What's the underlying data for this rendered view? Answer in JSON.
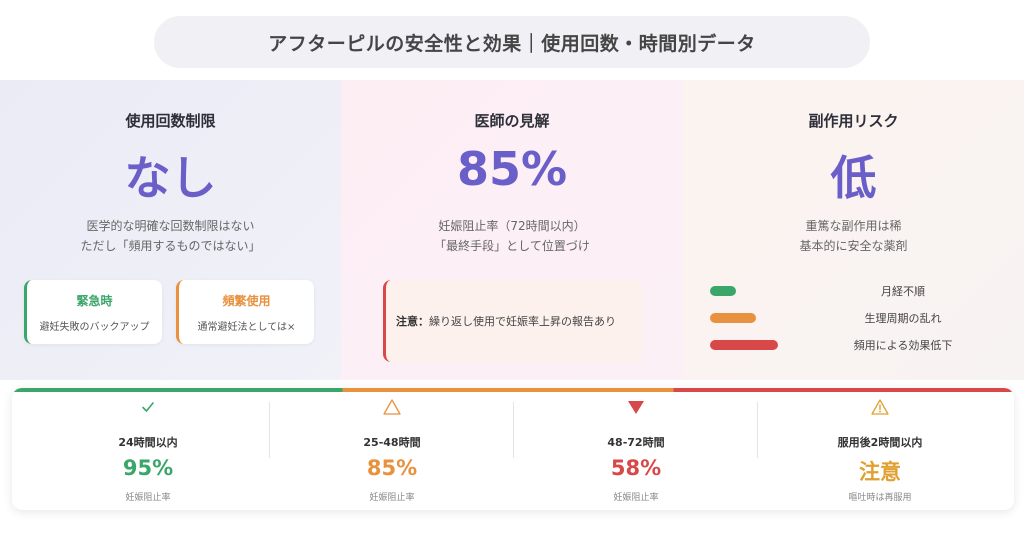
{
  "title": "アフターピルの安全性と効果｜使用回数・時間別データ",
  "panels": {
    "usage_limit": {
      "heading": "使用回数制限",
      "big": "なし",
      "desc1": "医学的な明確な回数制限はない",
      "desc2": "ただし「頻用するものではない」",
      "cards": [
        {
          "title": "緊急時",
          "text": "避妊失敗のバックアップ",
          "color": "#3aa66a"
        },
        {
          "title": "頻繁使用",
          "text": "通常避妊法としては×",
          "color": "#e8913e"
        }
      ]
    },
    "doctor_view": {
      "heading": "医師の見解",
      "big": "85%",
      "desc1": "妊娠阻止率（72時間以内）",
      "desc2": "「最終手段」として位置づけ",
      "note_label": "注意：",
      "note_text": "繰り返し使用で妊娠率上昇の報告あり"
    },
    "side_effect": {
      "heading": "副作用リスク",
      "big": "低",
      "desc1": "重篤な副作用は稀",
      "desc2": "基本的に安全な薬剤",
      "risks": [
        {
          "label": "月経不順",
          "color": "#3aa66a"
        },
        {
          "label": "生理周期の乱れ",
          "color": "#e8913e"
        },
        {
          "label": "頻用による効果低下",
          "color": "#d94848"
        }
      ]
    }
  },
  "stats": [
    {
      "icon": "check-icon",
      "label": "24時間以内",
      "value": "95%",
      "sub": "妊娠阻止率",
      "color": "#3aa66a"
    },
    {
      "icon": "triangle-outline-icon",
      "label": "25-48時間",
      "value": "85%",
      "sub": "妊娠阻止率",
      "color": "#e8913e"
    },
    {
      "icon": "triangle-down-icon",
      "label": "48-72時間",
      "value": "58%",
      "sub": "妊娠阻止率",
      "color": "#d94848"
    },
    {
      "icon": "warning-icon",
      "label": "服用後2時間以内",
      "value": "注意",
      "sub": "嘔吐時は再服用",
      "color": "#e0a030"
    }
  ]
}
